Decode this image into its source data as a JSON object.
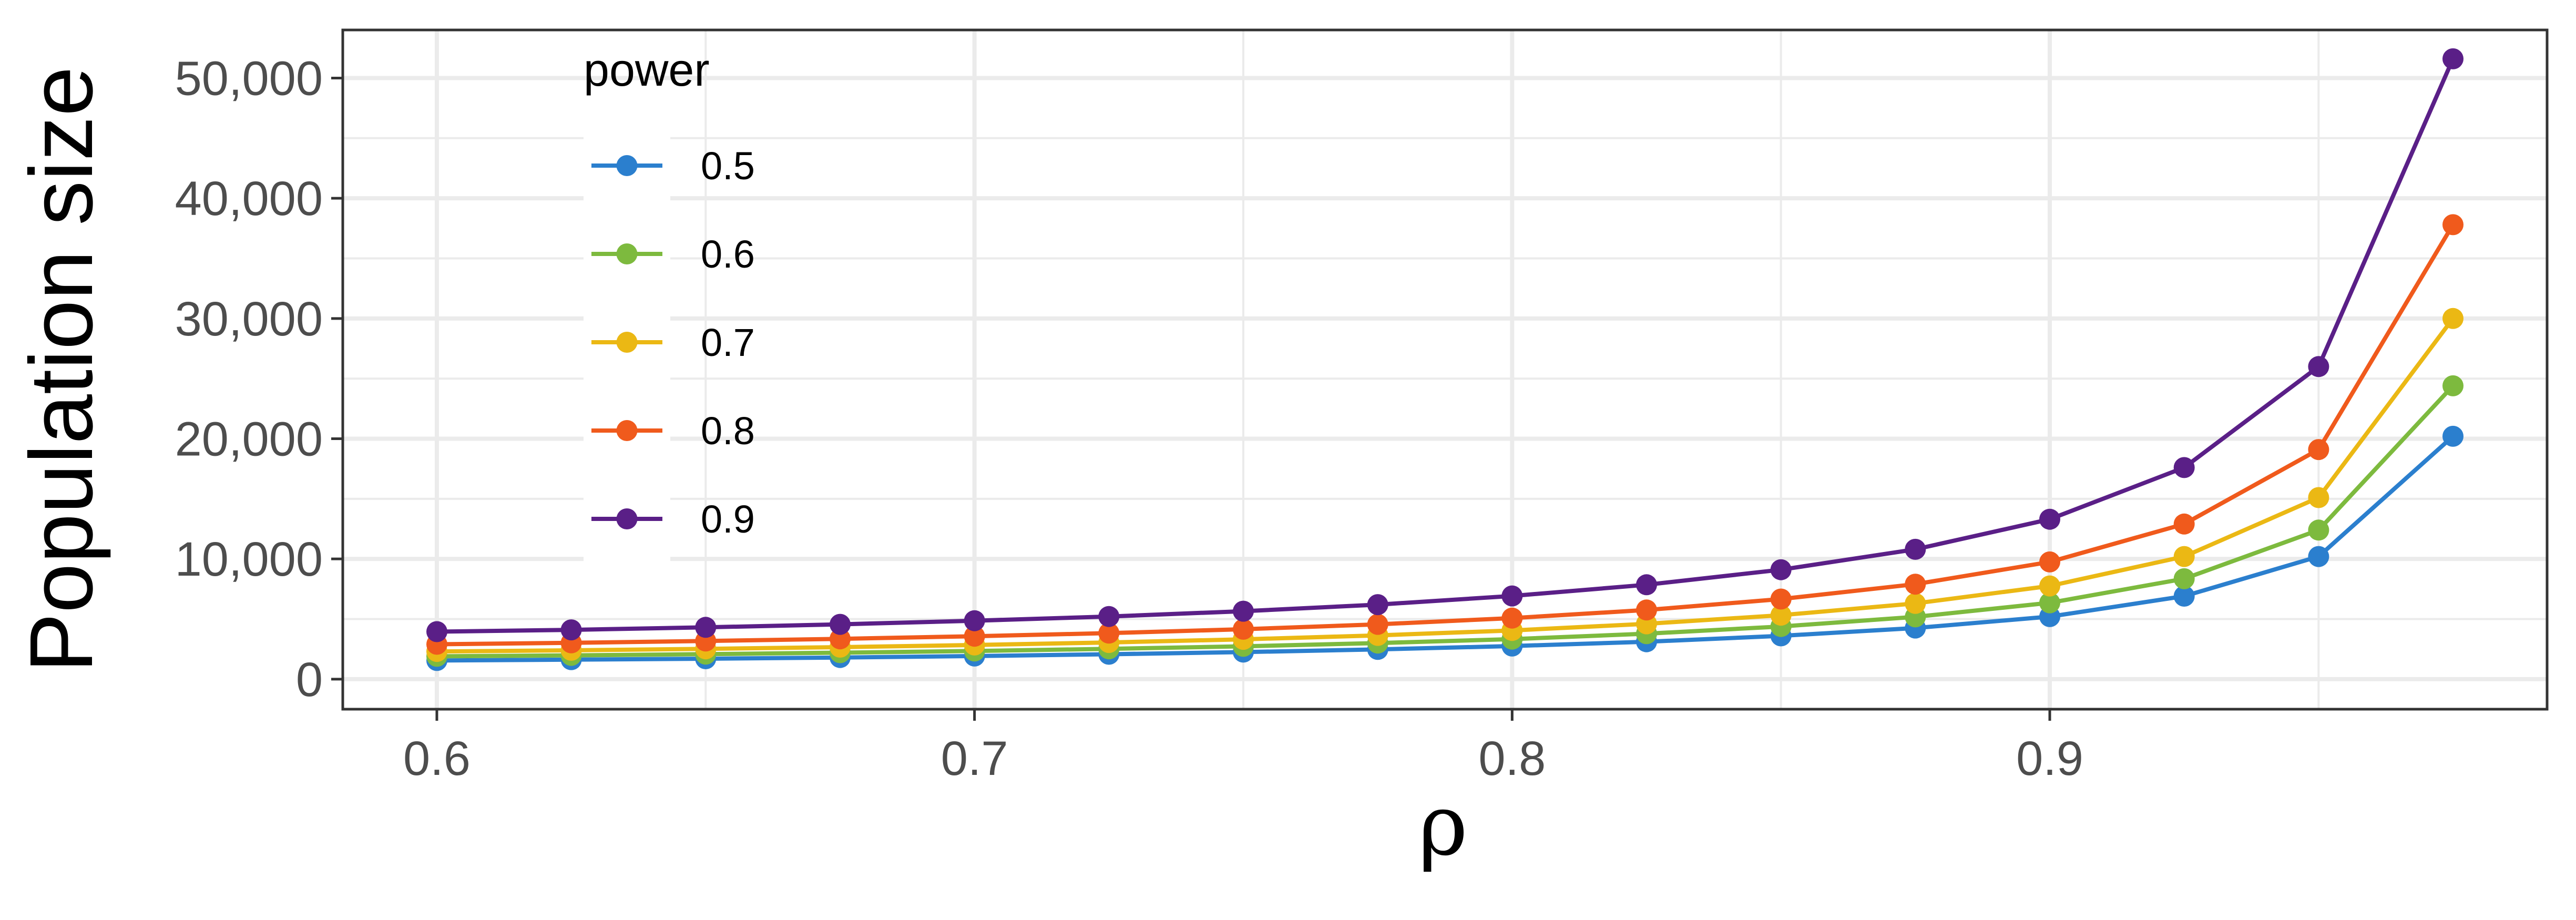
{
  "chart_data": {
    "type": "line",
    "title": "",
    "xlabel": "ρ",
    "ylabel": "Population size",
    "xlim": [
      0.5825,
      0.9925
    ],
    "ylim": [
      -2500,
      54000
    ],
    "x_ticks": [
      0.6,
      0.7,
      0.8,
      0.9
    ],
    "x_tick_labels": [
      "0.6",
      "0.7",
      "0.8",
      "0.9"
    ],
    "y_ticks": [
      0,
      10000,
      20000,
      30000,
      40000,
      50000
    ],
    "y_tick_labels": [
      "0",
      "10,000",
      "20,000",
      "30,000",
      "40,000",
      "50,000"
    ],
    "grid": true,
    "legend": {
      "title": "power",
      "placement": "top-left"
    },
    "x": [
      0.6,
      0.625,
      0.65,
      0.675,
      0.7,
      0.725,
      0.75,
      0.775,
      0.8,
      0.825,
      0.85,
      0.875,
      0.9,
      0.925,
      0.95,
      0.975
    ],
    "series": [
      {
        "name": "0.5",
        "color": "#2b7fce",
        "values": [
          1550,
          1620,
          1700,
          1800,
          1920,
          2070,
          2250,
          2470,
          2750,
          3110,
          3600,
          4250,
          5200,
          6900,
          10200,
          20200
        ]
      },
      {
        "name": "0.6",
        "color": "#7dba3e",
        "values": [
          1900,
          1980,
          2080,
          2200,
          2340,
          2520,
          2730,
          3000,
          3330,
          3780,
          4380,
          5180,
          6350,
          8350,
          12400,
          24400
        ]
      },
      {
        "name": "0.7",
        "color": "#ebb814",
        "values": [
          2300,
          2400,
          2520,
          2660,
          2840,
          3050,
          3310,
          3640,
          4050,
          4600,
          5320,
          6300,
          7750,
          10200,
          15100,
          30000
        ]
      },
      {
        "name": "0.8",
        "color": "#f05a1c",
        "values": [
          2900,
          3020,
          3170,
          3350,
          3570,
          3830,
          4150,
          4560,
          5080,
          5750,
          6660,
          7900,
          9750,
          12900,
          19100,
          37800
        ]
      },
      {
        "name": "0.9",
        "color": "#5a1f87",
        "values": [
          3950,
          4100,
          4310,
          4560,
          4860,
          5210,
          5650,
          6200,
          6920,
          7850,
          9100,
          10800,
          13300,
          17600,
          26000,
          51600
        ]
      }
    ]
  }
}
